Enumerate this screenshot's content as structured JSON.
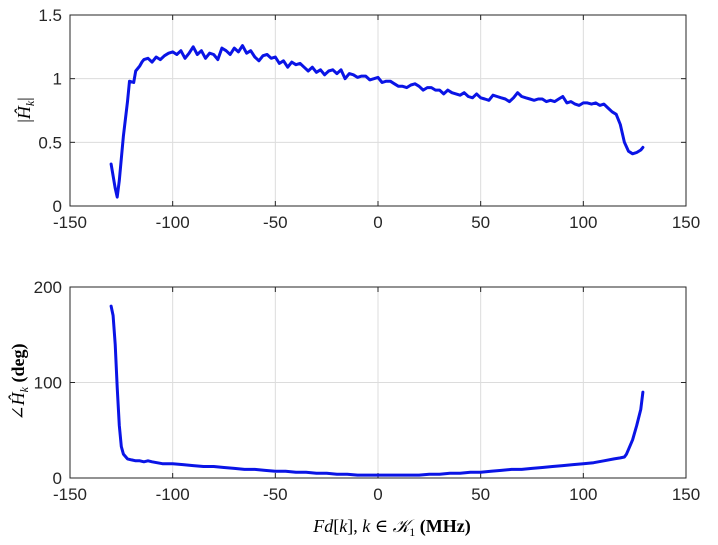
{
  "chart_data": [
    {
      "type": "line",
      "title": "",
      "xlabel": "",
      "ylabel": "|Ĥ_k|",
      "xlim": [
        -150,
        150
      ],
      "ylim": [
        0,
        1.5
      ],
      "xticks": [
        -150,
        -100,
        -50,
        0,
        50,
        100,
        150
      ],
      "xtick_labels": [
        "-150",
        "-100",
        "-50",
        "0",
        "50",
        "100",
        "150"
      ],
      "yticks": [
        0,
        0.5,
        1,
        1.5
      ],
      "ytick_labels": [
        "0",
        "0.5",
        "1",
        "1.5"
      ],
      "grid": true,
      "color": "#0a14e6",
      "series": [
        {
          "x": [
            -130,
            -128,
            -127,
            -126,
            -124,
            -122,
            -121,
            -119,
            -118,
            -116,
            -115,
            -114,
            -112,
            -110,
            -108,
            -106,
            -104,
            -102,
            -100,
            -98,
            -96,
            -94,
            -92,
            -90,
            -88,
            -86,
            -84,
            -82,
            -80,
            -78,
            -76,
            -74,
            -72,
            -70,
            -68,
            -66,
            -64,
            -62,
            -60,
            -58,
            -56,
            -54,
            -52,
            -50,
            -48,
            -46,
            -44,
            -42,
            -40,
            -38,
            -36,
            -34,
            -32,
            -30,
            -28,
            -26,
            -24,
            -22,
            -20,
            -18,
            -16,
            -14,
            -12,
            -10,
            -8,
            -6,
            -4,
            -2,
            0,
            2,
            4,
            6,
            8,
            10,
            12,
            14,
            16,
            18,
            20,
            22,
            24,
            26,
            28,
            30,
            32,
            34,
            36,
            38,
            40,
            42,
            44,
            46,
            48,
            50,
            52,
            54,
            56,
            58,
            60,
            62,
            64,
            66,
            68,
            70,
            72,
            74,
            76,
            78,
            80,
            82,
            84,
            86,
            88,
            90,
            92,
            94,
            96,
            98,
            100,
            102,
            104,
            106,
            108,
            110,
            112,
            114,
            116,
            118,
            120,
            122,
            124,
            126,
            128,
            129
          ],
          "values": [
            0.33,
            0.14,
            0.07,
            0.2,
            0.55,
            0.82,
            0.98,
            0.97,
            1.06,
            1.1,
            1.13,
            1.15,
            1.16,
            1.13,
            1.17,
            1.15,
            1.18,
            1.2,
            1.21,
            1.19,
            1.22,
            1.16,
            1.2,
            1.25,
            1.19,
            1.22,
            1.16,
            1.2,
            1.19,
            1.15,
            1.24,
            1.22,
            1.19,
            1.24,
            1.21,
            1.26,
            1.2,
            1.22,
            1.17,
            1.14,
            1.18,
            1.19,
            1.16,
            1.17,
            1.12,
            1.14,
            1.09,
            1.13,
            1.11,
            1.12,
            1.09,
            1.06,
            1.09,
            1.05,
            1.07,
            1.03,
            1.06,
            1.07,
            1.04,
            1.07,
            1.0,
            1.04,
            1.03,
            1.01,
            1.02,
            1.02,
            0.99,
            1.0,
            1.01,
            0.97,
            0.98,
            0.98,
            0.96,
            0.94,
            0.94,
            0.93,
            0.95,
            0.96,
            0.94,
            0.91,
            0.93,
            0.93,
            0.91,
            0.91,
            0.88,
            0.91,
            0.89,
            0.88,
            0.87,
            0.89,
            0.86,
            0.85,
            0.88,
            0.85,
            0.84,
            0.83,
            0.87,
            0.86,
            0.85,
            0.84,
            0.82,
            0.85,
            0.89,
            0.86,
            0.85,
            0.84,
            0.83,
            0.84,
            0.84,
            0.82,
            0.83,
            0.82,
            0.84,
            0.86,
            0.81,
            0.82,
            0.8,
            0.79,
            0.81,
            0.81,
            0.8,
            0.81,
            0.79,
            0.8,
            0.77,
            0.74,
            0.72,
            0.64,
            0.5,
            0.43,
            0.41,
            0.42,
            0.44,
            0.46
          ]
        }
      ]
    },
    {
      "type": "line",
      "title": "",
      "xlabel": "Fd[k],  k ∈ 𝒦₁  (MHz)",
      "ylabel": "∠Ĥ_k (deg)",
      "xlim": [
        -150,
        150
      ],
      "ylim": [
        0,
        200
      ],
      "xticks": [
        -150,
        -100,
        -50,
        0,
        50,
        100,
        150
      ],
      "xtick_labels": [
        "-150",
        "-100",
        "-50",
        "0",
        "50",
        "100",
        "150"
      ],
      "yticks": [
        0,
        100,
        200
      ],
      "ytick_labels": [
        "0",
        "100",
        "200"
      ],
      "grid": true,
      "color": "#0a14e6",
      "series": [
        {
          "x": [
            -130,
            -129,
            -128,
            -127,
            -126,
            -125,
            -124,
            -122,
            -120,
            -118,
            -116,
            -114,
            -112,
            -110,
            -105,
            -100,
            -95,
            -90,
            -85,
            -80,
            -75,
            -70,
            -65,
            -60,
            -55,
            -50,
            -45,
            -40,
            -35,
            -30,
            -25,
            -20,
            -15,
            -10,
            -5,
            0,
            5,
            10,
            15,
            20,
            25,
            30,
            35,
            40,
            45,
            50,
            55,
            60,
            65,
            70,
            75,
            80,
            85,
            90,
            95,
            100,
            105,
            110,
            115,
            118,
            120,
            121,
            122,
            124,
            126,
            128,
            129
          ],
          "values": [
            180,
            170,
            140,
            95,
            55,
            33,
            25,
            20,
            19,
            18,
            18,
            17,
            18,
            17,
            15,
            15,
            14,
            13,
            12,
            12,
            11,
            10,
            9,
            9,
            8,
            7,
            7,
            6,
            6,
            5,
            5,
            4,
            4,
            3,
            3,
            3,
            3,
            3,
            3,
            3,
            4,
            4,
            5,
            5,
            6,
            6,
            7,
            8,
            9,
            9,
            10,
            11,
            12,
            13,
            14,
            15,
            16,
            18,
            20,
            21,
            22,
            25,
            30,
            40,
            55,
            72,
            90
          ]
        }
      ]
    }
  ]
}
